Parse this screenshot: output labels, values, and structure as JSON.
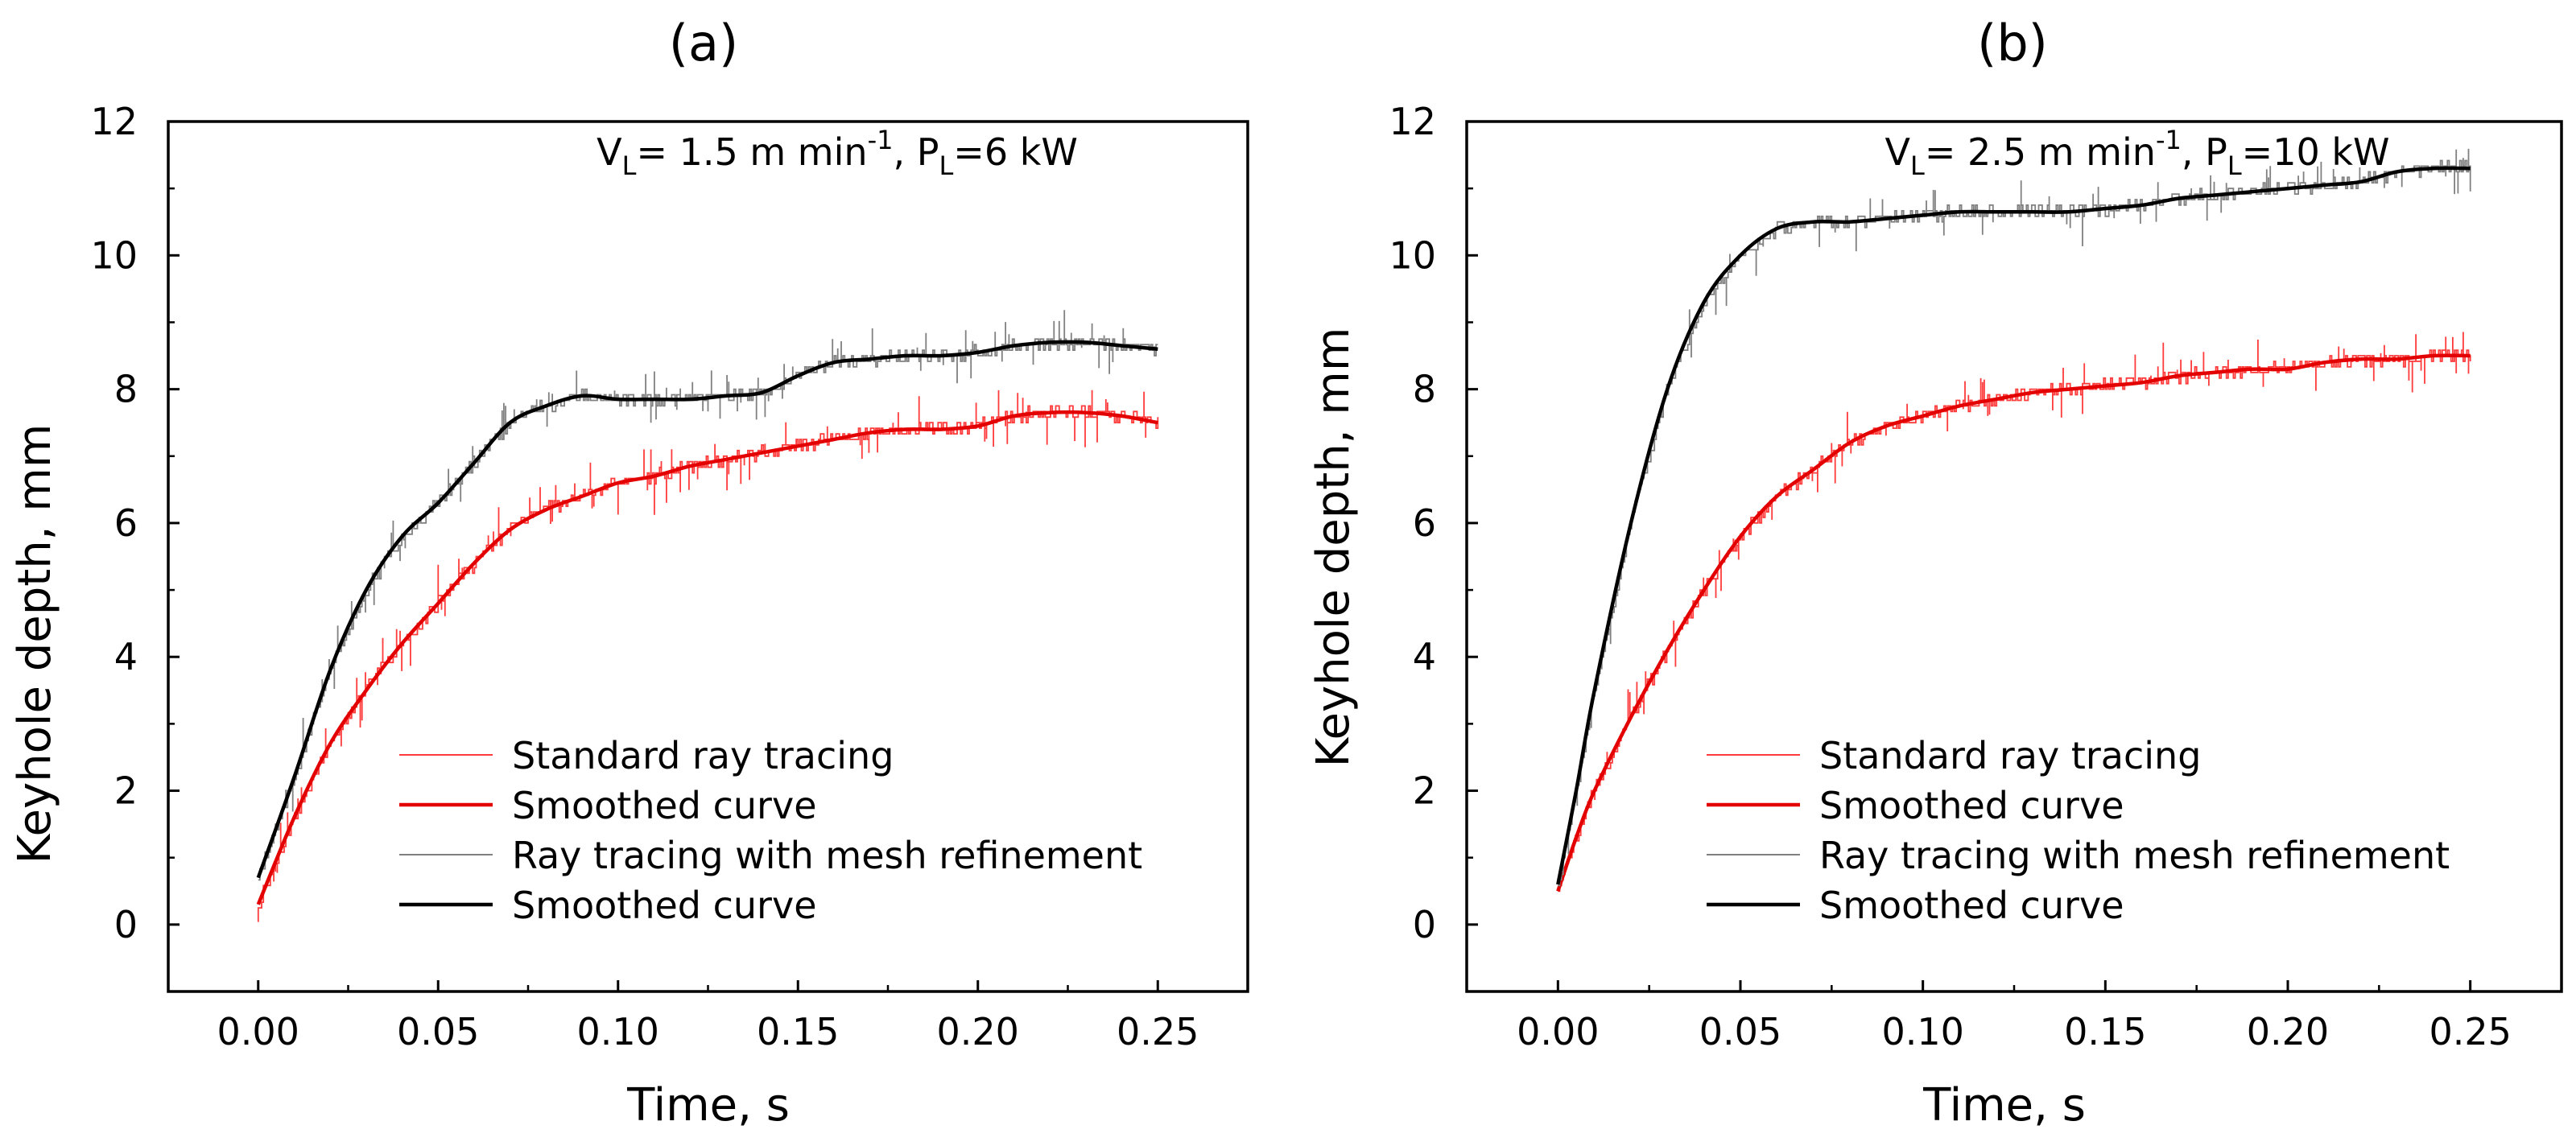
{
  "figure": {
    "panels": [
      {
        "panel_label": "(a)",
        "condition": {
          "v_sym": "V",
          "v_sub": "L",
          "v_text": "= 1.5 m min",
          "v_exp": "-1",
          "p_sym": ", P",
          "p_sub": "L",
          "p_text": "=6 kW"
        }
      },
      {
        "panel_label": "(b)",
        "condition": {
          "v_sym": "V",
          "v_sub": "L",
          "v_text": "= 2.5 m min",
          "v_exp": "-1",
          "p_sym": ", P",
          "p_sub": "L",
          "p_text": "=10 kW"
        }
      }
    ]
  },
  "chart_data": [
    {
      "type": "line",
      "title": "(a)",
      "xlabel": "Time, s",
      "ylabel": "Keyhole depth, mm",
      "xlim": [
        -0.025,
        0.275
      ],
      "ylim": [
        -1,
        12
      ],
      "xticks": [
        0.0,
        0.05,
        0.1,
        0.15,
        0.2,
        0.25
      ],
      "xtick_labels": [
        "0.00",
        "0.05",
        "0.10",
        "0.15",
        "0.20",
        "0.25"
      ],
      "yticks": [
        0,
        2,
        4,
        6,
        8,
        10,
        12
      ],
      "ytick_labels": [
        "0",
        "2",
        "4",
        "6",
        "8",
        "10",
        "12"
      ],
      "legend_position": "bottom-right",
      "series": [
        {
          "name": "Standard ray tracing",
          "color": "#ff3b3b",
          "style": "thin-step",
          "x": [
            0,
            0.01,
            0.02,
            0.03,
            0.04,
            0.05,
            0.06,
            0.07,
            0.08,
            0.09,
            0.1,
            0.11,
            0.12,
            0.13,
            0.14,
            0.15,
            0.16,
            0.17,
            0.18,
            0.19,
            0.2,
            0.21,
            0.22,
            0.23,
            0.24,
            0.25
          ],
          "y": [
            0.3,
            1.6,
            2.7,
            3.5,
            4.2,
            4.8,
            5.4,
            5.9,
            6.2,
            6.4,
            6.6,
            6.7,
            6.85,
            6.95,
            7.05,
            7.15,
            7.25,
            7.35,
            7.4,
            7.4,
            7.45,
            7.6,
            7.65,
            7.65,
            7.6,
            7.5
          ]
        },
        {
          "name": "Smoothed curve",
          "color": "#e30000",
          "style": "thick",
          "x": [
            0,
            0.01,
            0.02,
            0.03,
            0.04,
            0.05,
            0.06,
            0.07,
            0.08,
            0.09,
            0.1,
            0.11,
            0.12,
            0.13,
            0.14,
            0.15,
            0.16,
            0.17,
            0.18,
            0.19,
            0.2,
            0.21,
            0.22,
            0.23,
            0.24,
            0.25
          ],
          "y": [
            0.3,
            1.6,
            2.7,
            3.5,
            4.2,
            4.8,
            5.4,
            5.9,
            6.2,
            6.4,
            6.6,
            6.7,
            6.85,
            6.95,
            7.05,
            7.15,
            7.25,
            7.35,
            7.4,
            7.4,
            7.45,
            7.6,
            7.65,
            7.65,
            7.6,
            7.5
          ]
        },
        {
          "name": "Ray tracing with mesh refinement",
          "color": "#808080",
          "style": "thin-step",
          "x": [
            0,
            0.01,
            0.02,
            0.03,
            0.04,
            0.05,
            0.06,
            0.07,
            0.08,
            0.09,
            0.1,
            0.11,
            0.12,
            0.13,
            0.14,
            0.15,
            0.16,
            0.17,
            0.18,
            0.19,
            0.2,
            0.21,
            0.22,
            0.23,
            0.24,
            0.25
          ],
          "y": [
            0.7,
            2.2,
            3.8,
            5.0,
            5.8,
            6.3,
            6.9,
            7.5,
            7.75,
            7.9,
            7.85,
            7.85,
            7.85,
            7.9,
            7.95,
            8.2,
            8.4,
            8.45,
            8.5,
            8.5,
            8.55,
            8.65,
            8.7,
            8.7,
            8.65,
            8.6
          ]
        },
        {
          "name": "Smoothed curve",
          "color": "#000000",
          "style": "thick",
          "x": [
            0,
            0.01,
            0.02,
            0.03,
            0.04,
            0.05,
            0.06,
            0.07,
            0.08,
            0.09,
            0.1,
            0.11,
            0.12,
            0.13,
            0.14,
            0.15,
            0.16,
            0.17,
            0.18,
            0.19,
            0.2,
            0.21,
            0.22,
            0.23,
            0.24,
            0.25
          ],
          "y": [
            0.7,
            2.2,
            3.8,
            5.0,
            5.8,
            6.3,
            6.9,
            7.5,
            7.75,
            7.9,
            7.85,
            7.85,
            7.85,
            7.9,
            7.95,
            8.2,
            8.4,
            8.45,
            8.5,
            8.5,
            8.55,
            8.65,
            8.7,
            8.7,
            8.65,
            8.6
          ]
        }
      ]
    },
    {
      "type": "line",
      "title": "(b)",
      "xlabel": "Time, s",
      "ylabel": "Keyhole depth, mm",
      "xlim": [
        -0.025,
        0.275
      ],
      "ylim": [
        -1,
        12
      ],
      "xticks": [
        0.0,
        0.05,
        0.1,
        0.15,
        0.2,
        0.25
      ],
      "xtick_labels": [
        "0.00",
        "0.05",
        "0.10",
        "0.15",
        "0.20",
        "0.25"
      ],
      "yticks": [
        0,
        2,
        4,
        6,
        8,
        10,
        12
      ],
      "ytick_labels": [
        "0",
        "2",
        "4",
        "6",
        "8",
        "10",
        "12"
      ],
      "legend_position": "bottom-right",
      "series": [
        {
          "name": "Standard ray tracing",
          "color": "#ff3b3b",
          "style": "thin-step",
          "x": [
            0,
            0.005,
            0.01,
            0.02,
            0.03,
            0.04,
            0.05,
            0.06,
            0.07,
            0.08,
            0.09,
            0.1,
            0.11,
            0.12,
            0.13,
            0.14,
            0.15,
            0.16,
            0.17,
            0.18,
            0.19,
            0.2,
            0.21,
            0.22,
            0.23,
            0.24,
            0.25
          ],
          "y": [
            0.5,
            1.3,
            2.0,
            3.1,
            4.1,
            5.0,
            5.8,
            6.4,
            6.8,
            7.2,
            7.45,
            7.6,
            7.75,
            7.85,
            7.95,
            8.0,
            8.05,
            8.1,
            8.2,
            8.25,
            8.3,
            8.3,
            8.4,
            8.45,
            8.45,
            8.5,
            8.5
          ]
        },
        {
          "name": "Smoothed curve",
          "color": "#e30000",
          "style": "thick",
          "x": [
            0,
            0.005,
            0.01,
            0.02,
            0.03,
            0.04,
            0.05,
            0.06,
            0.07,
            0.08,
            0.09,
            0.1,
            0.11,
            0.12,
            0.13,
            0.14,
            0.15,
            0.16,
            0.17,
            0.18,
            0.19,
            0.2,
            0.21,
            0.22,
            0.23,
            0.24,
            0.25
          ],
          "y": [
            0.5,
            1.3,
            2.0,
            3.1,
            4.1,
            5.0,
            5.8,
            6.4,
            6.8,
            7.2,
            7.45,
            7.6,
            7.75,
            7.85,
            7.95,
            8.0,
            8.05,
            8.1,
            8.2,
            8.25,
            8.3,
            8.3,
            8.4,
            8.45,
            8.45,
            8.5,
            8.5
          ]
        },
        {
          "name": "Ray tracing with mesh refinement",
          "color": "#808080",
          "style": "thin-step",
          "x": [
            0,
            0.005,
            0.01,
            0.02,
            0.03,
            0.04,
            0.05,
            0.06,
            0.07,
            0.08,
            0.09,
            0.1,
            0.11,
            0.12,
            0.13,
            0.14,
            0.15,
            0.16,
            0.17,
            0.18,
            0.19,
            0.2,
            0.21,
            0.22,
            0.23,
            0.24,
            0.25
          ],
          "y": [
            0.6,
            2.0,
            3.5,
            6.0,
            8.0,
            9.3,
            10.0,
            10.4,
            10.5,
            10.5,
            10.55,
            10.6,
            10.65,
            10.65,
            10.65,
            10.65,
            10.7,
            10.75,
            10.85,
            10.9,
            10.95,
            11.0,
            11.05,
            11.1,
            11.25,
            11.3,
            11.3
          ]
        },
        {
          "name": "Smoothed curve",
          "color": "#000000",
          "style": "thick",
          "x": [
            0,
            0.005,
            0.01,
            0.02,
            0.03,
            0.04,
            0.05,
            0.06,
            0.07,
            0.08,
            0.09,
            0.1,
            0.11,
            0.12,
            0.13,
            0.14,
            0.15,
            0.16,
            0.17,
            0.18,
            0.19,
            0.2,
            0.21,
            0.22,
            0.23,
            0.24,
            0.25
          ],
          "y": [
            0.6,
            2.0,
            3.5,
            6.0,
            8.0,
            9.3,
            10.0,
            10.4,
            10.5,
            10.5,
            10.55,
            10.6,
            10.65,
            10.65,
            10.65,
            10.65,
            10.7,
            10.75,
            10.85,
            10.9,
            10.95,
            11.0,
            11.05,
            11.1,
            11.25,
            11.3,
            11.3
          ]
        }
      ]
    }
  ]
}
